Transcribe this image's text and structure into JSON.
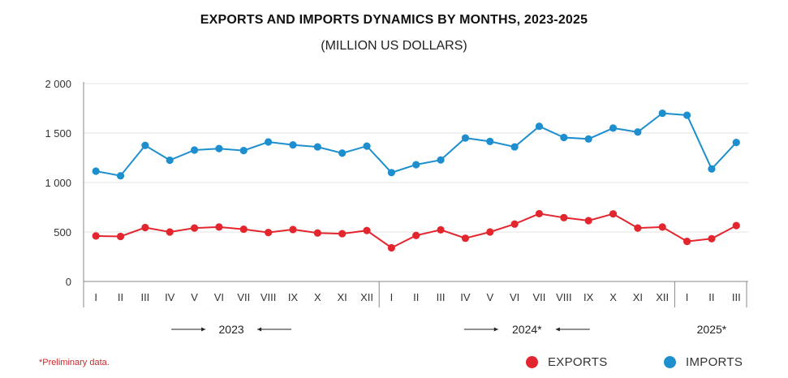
{
  "chart_data": {
    "type": "line",
    "title": "EXPORTS AND IMPORTS DYNAMICS BY MONTHS, 2023-2025",
    "subtitle": "(MILLION US DOLLARS)",
    "xlabel": "",
    "ylabel": "",
    "ylim": [
      0,
      2000
    ],
    "yticks": [
      0,
      500,
      1000,
      1500,
      2000
    ],
    "ytick_labels": [
      "0",
      "500",
      "1 000",
      "1 500",
      "2 000"
    ],
    "grid": true,
    "legend_position": "bottom-right",
    "categories": [
      "I",
      "II",
      "III",
      "IV",
      "V",
      "VI",
      "VII",
      "VIII",
      "IX",
      "X",
      "XI",
      "XII",
      "I",
      "II",
      "III",
      "IV",
      "V",
      "VI",
      "VII",
      "VIII",
      "IX",
      "X",
      "XI",
      "XII",
      "I",
      "II",
      "III"
    ],
    "years": [
      {
        "label": "2023",
        "start": 0,
        "end": 11,
        "arrows": true
      },
      {
        "label": "2024*",
        "start": 12,
        "end": 23,
        "arrows": true
      },
      {
        "label": "2025*",
        "start": 24,
        "end": 26,
        "arrows": false
      }
    ],
    "series": [
      {
        "name": "EXPORTS",
        "color": "#e3262e",
        "values": [
          460,
          455,
          545,
          500,
          540,
          550,
          528,
          495,
          525,
          490,
          483,
          515,
          340,
          465,
          522,
          437,
          500,
          580,
          685,
          645,
          615,
          683,
          540,
          550,
          405,
          432,
          565
        ]
      },
      {
        "name": "IMPORTS",
        "color": "#1d8fce",
        "values": [
          1115,
          1068,
          1375,
          1225,
          1328,
          1343,
          1323,
          1410,
          1380,
          1360,
          1297,
          1368,
          1100,
          1180,
          1228,
          1450,
          1415,
          1360,
          1568,
          1455,
          1440,
          1550,
          1510,
          1700,
          1680,
          1137,
          1405
        ]
      }
    ]
  },
  "footnote": "*Preliminary data."
}
